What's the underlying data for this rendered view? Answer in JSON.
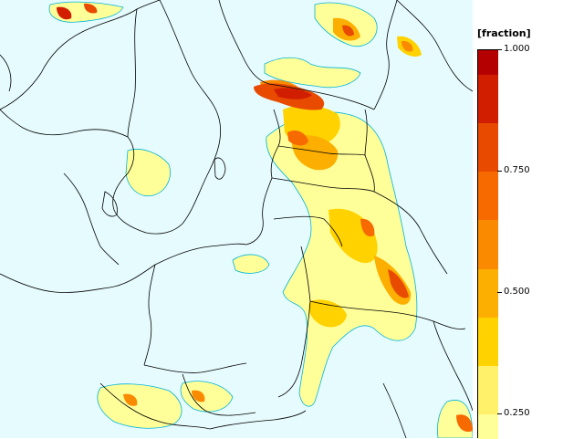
{
  "legend": {
    "unit": "[fraction]",
    "ticks": [
      {
        "value": 1.0,
        "label": "1.000"
      },
      {
        "value": 0.75,
        "label": "0.750"
      },
      {
        "value": 0.5,
        "label": "0.500"
      },
      {
        "value": 0.25,
        "label": "0.250"
      }
    ],
    "color_bins": [
      {
        "from": 0.95,
        "to": 1.0,
        "color": "#b50000"
      },
      {
        "from": 0.85,
        "to": 0.95,
        "color": "#d21e00"
      },
      {
        "from": 0.75,
        "to": 0.85,
        "color": "#e84a00"
      },
      {
        "from": 0.65,
        "to": 0.75,
        "color": "#f66a00"
      },
      {
        "from": 0.55,
        "to": 0.65,
        "color": "#fa8b00"
      },
      {
        "from": 0.45,
        "to": 0.55,
        "color": "#fcaf00"
      },
      {
        "from": 0.35,
        "to": 0.45,
        "color": "#ffd200"
      },
      {
        "from": 0.25,
        "to": 0.35,
        "color": "#fff16a"
      },
      {
        "from": 0.2,
        "to": 0.25,
        "color": "#ffff9a"
      }
    ]
  },
  "map": {
    "background_color": "#e6fbfd",
    "border_color": "#000000",
    "contour_color": "#00b4d8"
  }
}
